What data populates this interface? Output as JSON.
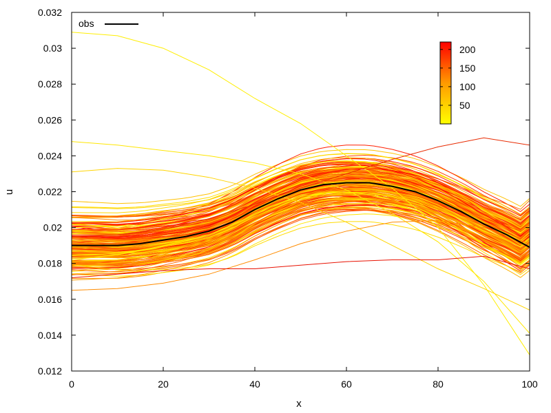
{
  "chart_data": {
    "type": "line",
    "title": "",
    "xlabel": "x",
    "ylabel": "u",
    "xlim": [
      0,
      100
    ],
    "ylim": [
      0.012,
      0.032
    ],
    "x_ticks": [
      "0",
      "20",
      "40",
      "60",
      "80",
      "100"
    ],
    "y_ticks": [
      "0.012",
      "0.014",
      "0.016",
      "0.018",
      "0.02",
      "0.022",
      "0.024",
      "0.026",
      "0.028",
      "0.03",
      "0.032"
    ],
    "grid": false,
    "legend": {
      "position": "top-left",
      "entries": [
        {
          "label": "obs",
          "color": "#000000"
        }
      ]
    },
    "colorbar": {
      "position": "top-right",
      "range": [
        0,
        220
      ],
      "ticks": [
        "50",
        "100",
        "150",
        "200"
      ],
      "color_low": "#ffff00",
      "color_high": "#ff0000"
    },
    "ensemble_size": 220,
    "obs": {
      "name": "obs",
      "color": "#000000",
      "x": [
        0,
        5,
        10,
        15,
        20,
        25,
        30,
        35,
        40,
        45,
        50,
        55,
        60,
        65,
        70,
        75,
        80,
        85,
        90,
        95,
        100
      ],
      "y": [
        0.019,
        0.019,
        0.019,
        0.0191,
        0.0193,
        0.0195,
        0.0198,
        0.0203,
        0.021,
        0.0216,
        0.0221,
        0.0224,
        0.0225,
        0.0225,
        0.0223,
        0.022,
        0.0215,
        0.0209,
        0.0202,
        0.0196,
        0.0189
      ]
    },
    "highlight_series": [
      {
        "x": [
          0,
          10,
          20,
          30,
          40,
          50,
          60,
          70,
          80,
          90,
          100
        ],
        "y": [
          0.0309,
          0.0307,
          0.03,
          0.0288,
          0.0272,
          0.0258,
          0.024,
          0.0222,
          0.02,
          0.0168,
          0.0129
        ],
        "color": "#ffee00"
      },
      {
        "x": [
          0,
          10,
          20,
          30,
          40,
          50,
          60,
          70,
          80,
          90,
          100
        ],
        "y": [
          0.0248,
          0.0246,
          0.0243,
          0.024,
          0.0236,
          0.023,
          0.0221,
          0.0208,
          0.0192,
          0.017,
          0.0141
        ],
        "color": "#ffe600"
      },
      {
        "x": [
          0,
          10,
          20,
          30,
          40,
          50,
          60,
          70,
          80,
          90,
          100
        ],
        "y": [
          0.0231,
          0.0233,
          0.0232,
          0.0228,
          0.0222,
          0.0214,
          0.0203,
          0.019,
          0.0177,
          0.0166,
          0.0154
        ],
        "color": "#ffd400"
      },
      {
        "x": [
          0,
          10,
          20,
          30,
          40,
          50,
          60,
          70,
          80,
          90,
          100
        ],
        "y": [
          0.0165,
          0.0166,
          0.0169,
          0.0174,
          0.0182,
          0.0191,
          0.0198,
          0.0203,
          0.0204,
          0.02,
          0.0191
        ],
        "color": "#ff8c00"
      },
      {
        "x": [
          0,
          10,
          20,
          30,
          40,
          50,
          60,
          70,
          80,
          90,
          100
        ],
        "y": [
          0.0172,
          0.0174,
          0.0176,
          0.0177,
          0.0177,
          0.0179,
          0.0181,
          0.0182,
          0.0182,
          0.0184,
          0.0177
        ],
        "color": "#e81000"
      },
      {
        "x": [
          0,
          10,
          20,
          30,
          40,
          50,
          60,
          70,
          80,
          90,
          100
        ],
        "y": [
          0.0195,
          0.0196,
          0.0199,
          0.0205,
          0.0213,
          0.0222,
          0.023,
          0.0238,
          0.0245,
          0.025,
          0.0246
        ],
        "color": "#e82a00"
      }
    ]
  }
}
